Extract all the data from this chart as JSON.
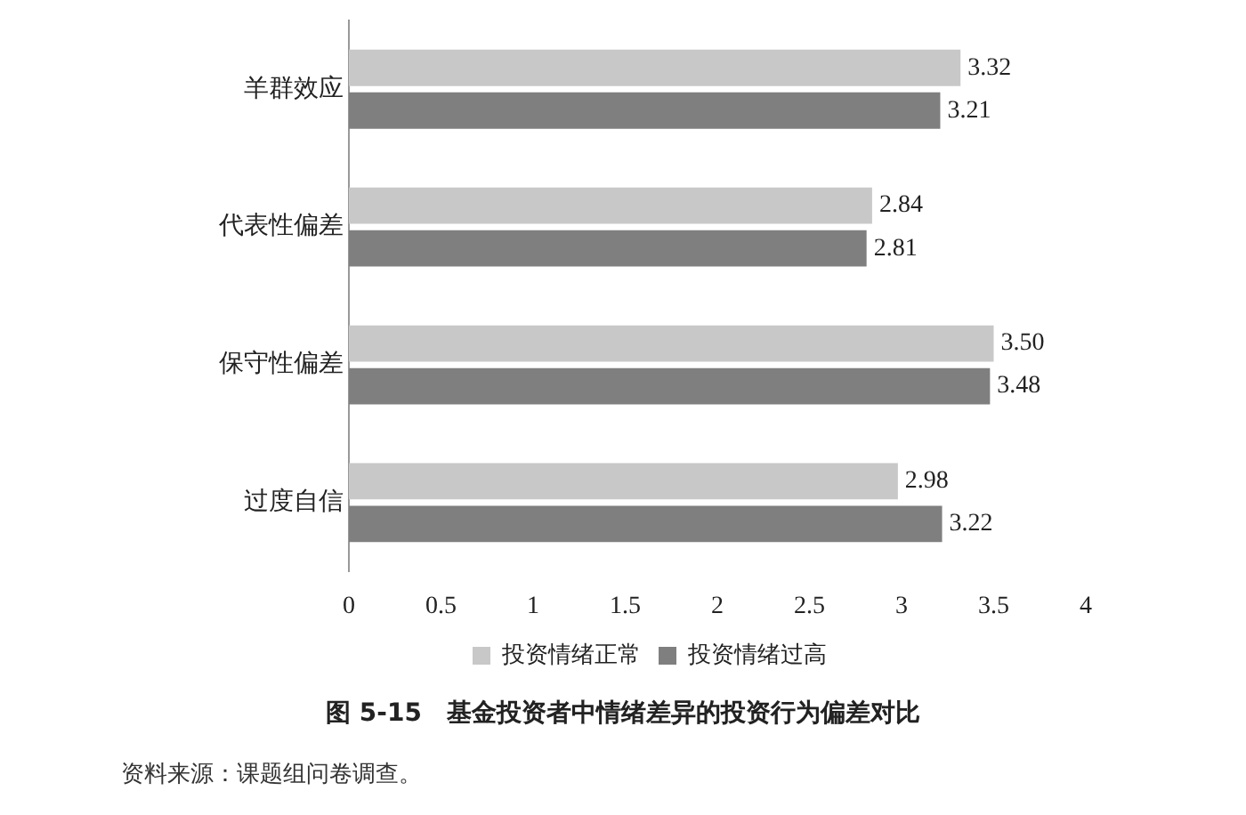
{
  "chart_data": {
    "type": "bar",
    "orientation": "horizontal",
    "title": "图 5-15　基金投资者中情绪差异的投资行为偏差对比",
    "annotations": [
      "资料来源：课题组问卷调查。"
    ],
    "categories": [
      "羊群效应",
      "代表性偏差",
      "保守性偏差",
      "过度自信"
    ],
    "series": [
      {
        "name": "投资情绪正常",
        "color": "#c8c8c8",
        "values": [
          3.32,
          2.84,
          3.5,
          2.98
        ],
        "value_labels": [
          "3.32",
          "2.84",
          "3.50",
          "2.98"
        ]
      },
      {
        "name": "投资情绪过高",
        "color": "#7f7f7f",
        "values": [
          3.21,
          2.81,
          3.48,
          3.22
        ],
        "value_labels": [
          "3.21",
          "2.81",
          "3.48",
          "3.22"
        ]
      }
    ],
    "xlim": [
      0,
      4
    ],
    "xticks": [
      0,
      0.5,
      1,
      1.5,
      2,
      2.5,
      3,
      3.5,
      4
    ],
    "grid": false,
    "legend": "bottom"
  }
}
